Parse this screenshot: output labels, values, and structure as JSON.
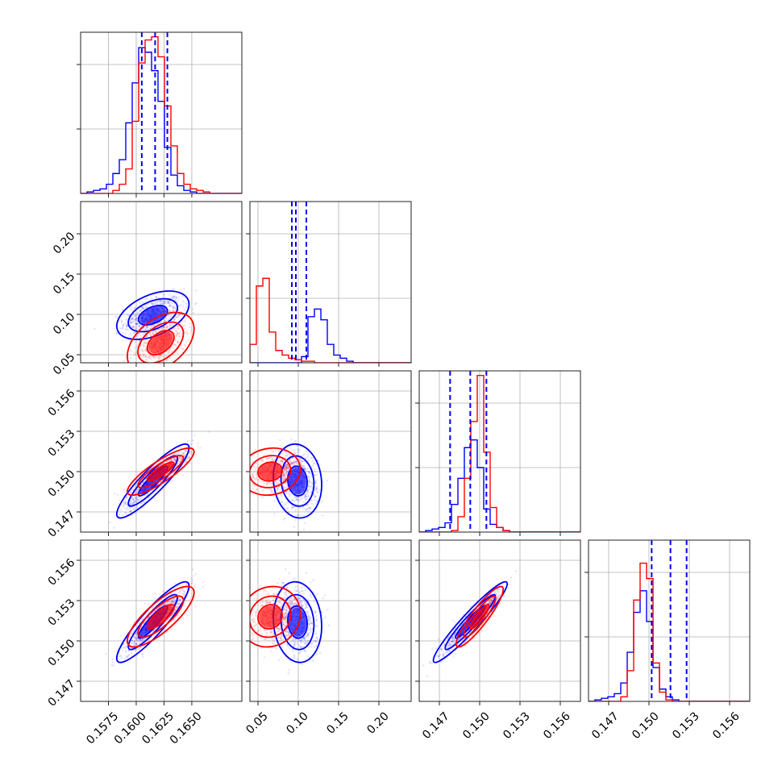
{
  "chart_data": {
    "type": "corner",
    "title": "",
    "n_params": 4,
    "series": [
      {
        "name": "",
        "color": "#0000ff"
      },
      {
        "name": "",
        "color": "#ff0000"
      }
    ],
    "params": [
      {
        "range": [
          0.155,
          0.1695
        ],
        "ticks": [
          0.1575,
          0.16,
          0.1625,
          0.165
        ],
        "tick_labels": [
          "0.1575",
          "0.1600",
          "0.1625",
          "0.1650"
        ]
      },
      {
        "range": [
          0.04,
          0.24
        ],
        "ticks": [
          0.05,
          0.1,
          0.15,
          0.2
        ],
        "tick_labels": [
          "0.05",
          "0.10",
          "0.15",
          "0.20"
        ]
      },
      {
        "range": [
          0.1455,
          0.1575
        ],
        "ticks": [
          0.147,
          0.15,
          0.153,
          0.156
        ],
        "tick_labels": [
          "0.147",
          "0.150",
          "0.153",
          "0.156"
        ]
      },
      {
        "range": [
          0.1455,
          0.1575
        ],
        "ticks": [
          0.147,
          0.15,
          0.153,
          0.156
        ],
        "tick_labels": [
          "0.147",
          "0.150",
          "0.153",
          "0.156"
        ]
      }
    ],
    "quantiles": [
      [
        0.1605,
        0.1617,
        0.1628
      ],
      [
        0.092,
        0.097,
        0.11
      ],
      [
        0.1478,
        0.1493,
        0.1505
      ],
      [
        0.1502,
        0.1516,
        0.1528
      ]
    ],
    "histograms": [
      {
        "blue": [
          0,
          1,
          2,
          3,
          6,
          13,
          22,
          46,
          72,
          95,
          92,
          80,
          60,
          30,
          12,
          5,
          2,
          1,
          0,
          0,
          0,
          0,
          0,
          0,
          0
        ],
        "red": [
          0,
          0,
          0,
          0,
          0,
          2,
          6,
          16,
          47,
          85,
          100,
          102,
          89,
          57,
          31,
          13,
          6,
          3,
          2,
          1,
          0,
          0,
          0,
          0,
          0
        ]
      },
      {
        "blue": [
          0,
          0,
          0,
          0,
          0,
          0,
          0,
          0,
          4,
          30,
          35,
          28,
          12,
          5,
          3,
          1,
          0,
          0,
          0,
          0,
          0,
          0,
          0,
          0,
          0
        ],
        "red": [
          12,
          50,
          55,
          20,
          8,
          5,
          3,
          2,
          1,
          1,
          0,
          0,
          0,
          0,
          0,
          0,
          0,
          0,
          0,
          0,
          0,
          0,
          0,
          0,
          0
        ]
      },
      {
        "blue": [
          0,
          1,
          2,
          3,
          6,
          18,
          35,
          55,
          60,
          42,
          15,
          5,
          3,
          1,
          0,
          0,
          0,
          0,
          0,
          0,
          0,
          0,
          0,
          0,
          0
        ],
        "red": [
          0,
          0,
          0,
          0,
          0,
          1,
          10,
          35,
          72,
          102,
          52,
          16,
          3,
          1,
          0,
          0,
          0,
          0,
          0,
          0,
          0,
          0,
          0,
          0,
          0
        ]
      },
      {
        "blue": [
          0,
          1,
          2,
          3,
          5,
          12,
          32,
          58,
          72,
          52,
          22,
          8,
          3,
          1,
          0,
          0,
          0,
          0,
          0,
          0,
          0,
          0,
          0,
          0,
          0
        ],
        "red": [
          0,
          0,
          0,
          0,
          0,
          3,
          20,
          66,
          90,
          80,
          25,
          6,
          1,
          0,
          0,
          0,
          0,
          0,
          0,
          0,
          0,
          0,
          0,
          0,
          0
        ]
      }
    ],
    "hist_bins": 25,
    "hist_ymax": 105,
    "hist_yticks": [
      0.4,
      0.8
    ],
    "distributions": {
      "blue": {
        "mean": [
          0.1615,
          0.099,
          0.1493,
          0.1514
        ],
        "std": [
          0.0013,
          0.012,
          0.0011,
          0.0012
        ]
      },
      "red": {
        "mean": [
          0.1622,
          0.065,
          0.15,
          0.1518
        ],
        "std": [
          0.0012,
          0.015,
          0.0007,
          0.0009
        ]
      }
    },
    "grid": true
  }
}
